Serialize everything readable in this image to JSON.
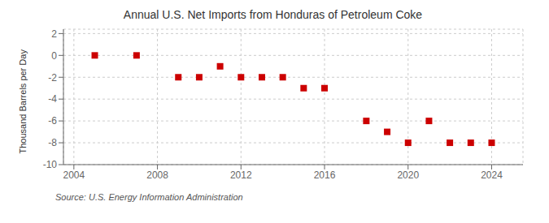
{
  "chart_data": {
    "type": "scatter",
    "title": "Annual U.S. Net Imports from Honduras of Petroleum Coke",
    "ylabel": "Thousand Barrels per Day",
    "annotations": [
      "Source: U.S. Energy Information Administration"
    ],
    "x": [
      2005,
      2007,
      2009,
      2010,
      2011,
      2012,
      2013,
      2014,
      2015,
      2016,
      2018,
      2019,
      2020,
      2021,
      2022,
      2023,
      2024
    ],
    "values": [
      0,
      0,
      -2,
      -2,
      -1,
      -2,
      -2,
      -2,
      -3,
      -3,
      -6,
      -7,
      -8,
      -6,
      -8,
      -8,
      -8
    ],
    "xlim": [
      2003.5,
      2025.5
    ],
    "ylim": [
      -10,
      2.4
    ],
    "xticks": [
      2004,
      2008,
      2012,
      2016,
      2020,
      2024
    ],
    "yticks": [
      2,
      0,
      -2,
      -4,
      -6,
      -8,
      -10
    ],
    "color": "#cc0000",
    "marker": "square",
    "grid": true
  }
}
